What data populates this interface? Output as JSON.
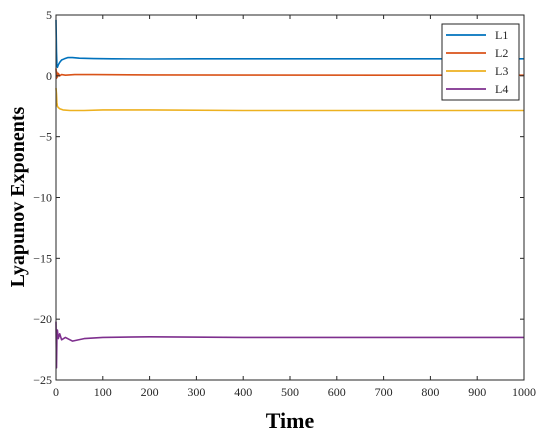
{
  "chart_data": {
    "type": "line",
    "title": "",
    "xlabel": "Time",
    "ylabel": "Lyapunov Exponents",
    "xlim": [
      0,
      1000
    ],
    "ylim": [
      -25,
      5
    ],
    "xticks": [
      0,
      100,
      200,
      300,
      400,
      500,
      600,
      700,
      800,
      900,
      1000
    ],
    "yticks": [
      5,
      0,
      -5,
      -10,
      -15,
      -20,
      -25
    ],
    "xtick_labels": [
      "0",
      "100",
      "200",
      "300",
      "400",
      "500",
      "600",
      "700",
      "800",
      "900",
      "1000"
    ],
    "ytick_labels": [
      "5",
      "0",
      "−5",
      "−10",
      "−15",
      "−20",
      "−25"
    ],
    "grid": false,
    "legend_position": "top-right",
    "series": [
      {
        "name": "L1",
        "color": "#0072BD",
        "x": [
          0,
          1,
          2,
          3,
          5,
          8,
          12,
          18,
          25,
          35,
          50,
          80,
          120,
          200,
          300,
          500,
          700,
          1000
        ],
        "y": [
          4.6,
          2.0,
          1.0,
          0.7,
          0.9,
          1.1,
          1.3,
          1.4,
          1.5,
          1.5,
          1.45,
          1.42,
          1.4,
          1.38,
          1.4,
          1.4,
          1.4,
          1.4
        ]
      },
      {
        "name": "L2",
        "color": "#D95319",
        "x": [
          0,
          1,
          2,
          3,
          5,
          8,
          12,
          20,
          40,
          80,
          200,
          400,
          700,
          1000
        ],
        "y": [
          0.6,
          -0.2,
          0.3,
          -0.1,
          0.2,
          0.0,
          0.1,
          0.05,
          0.1,
          0.1,
          0.08,
          0.06,
          0.05,
          0.05
        ]
      },
      {
        "name": "L3",
        "color": "#EDB120",
        "x": [
          0,
          1,
          2,
          3,
          5,
          8,
          15,
          30,
          60,
          100,
          200,
          400,
          700,
          1000
        ],
        "y": [
          -1.0,
          -1.5,
          -2.2,
          -2.5,
          -2.6,
          -2.7,
          -2.8,
          -2.85,
          -2.85,
          -2.8,
          -2.8,
          -2.85,
          -2.85,
          -2.85
        ]
      },
      {
        "name": "L4",
        "color": "#7E2F8E",
        "x": [
          0,
          1,
          2,
          3,
          5,
          8,
          12,
          20,
          35,
          60,
          100,
          200,
          400,
          700,
          1000
        ],
        "y": [
          -20.2,
          -24.0,
          -21.5,
          -20.9,
          -21.6,
          -21.2,
          -21.7,
          -21.5,
          -21.8,
          -21.6,
          -21.5,
          -21.45,
          -21.5,
          -21.5,
          -21.5
        ]
      }
    ]
  }
}
